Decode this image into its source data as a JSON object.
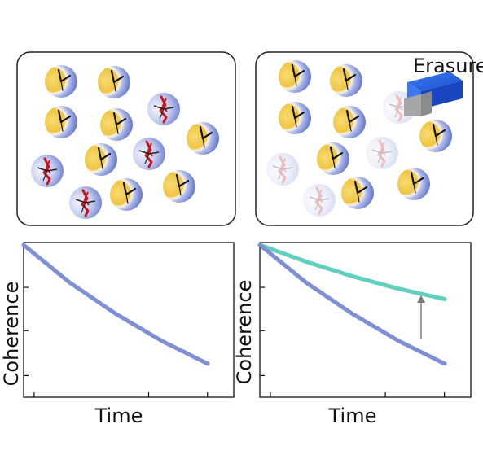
{
  "labels": {
    "erasure": "Erasure",
    "y_axis": "Coherence",
    "x_axis": "Time"
  },
  "colors": {
    "clock_yellow": "#f1c84a",
    "clock_blue": "#4b63c9",
    "defect_red": "#c8141a",
    "curve_blue": "#7f8fd6",
    "curve_teal": "#5fd0bd",
    "eraser_blue": "#1f5fe0",
    "eraser_grey": "#a9aaac",
    "arrow_grey": "#777777",
    "frame": "#222222"
  },
  "panels": {
    "left_clocks": [
      {
        "state": "good"
      },
      {
        "state": "good"
      },
      {
        "state": "defect"
      },
      {
        "state": "good"
      },
      {
        "state": "good"
      },
      {
        "state": "good"
      },
      {
        "state": "defect"
      },
      {
        "state": "good"
      },
      {
        "state": "defect"
      },
      {
        "state": "good"
      },
      {
        "state": "good"
      },
      {
        "state": "defect"
      }
    ],
    "right_clocks": [
      {
        "state": "good"
      },
      {
        "state": "good"
      },
      {
        "state": "erased"
      },
      {
        "state": "good"
      },
      {
        "state": "good"
      },
      {
        "state": "good"
      },
      {
        "state": "erased"
      },
      {
        "state": "good"
      },
      {
        "state": "erased"
      },
      {
        "state": "good"
      },
      {
        "state": "good"
      },
      {
        "state": "erased"
      }
    ]
  },
  "chart_data": [
    {
      "type": "line",
      "xlabel": "Time",
      "ylabel": "Coherence",
      "series": [
        {
          "x": [
            0,
            0.25,
            0.5,
            0.75,
            1
          ],
          "values": [
            1.0,
            0.82,
            0.67,
            0.54,
            0.43
          ]
        }
      ]
    },
    {
      "type": "line",
      "xlabel": "Time",
      "ylabel": "Coherence",
      "series": [
        {
          "x": [
            0,
            0.25,
            0.5,
            0.75,
            1
          ],
          "values": [
            1.0,
            0.92,
            0.85,
            0.79,
            0.74
          ]
        },
        {
          "x": [
            0,
            0.25,
            0.5,
            0.75,
            1
          ],
          "values": [
            1.0,
            0.82,
            0.67,
            0.54,
            0.43
          ]
        }
      ]
    }
  ]
}
